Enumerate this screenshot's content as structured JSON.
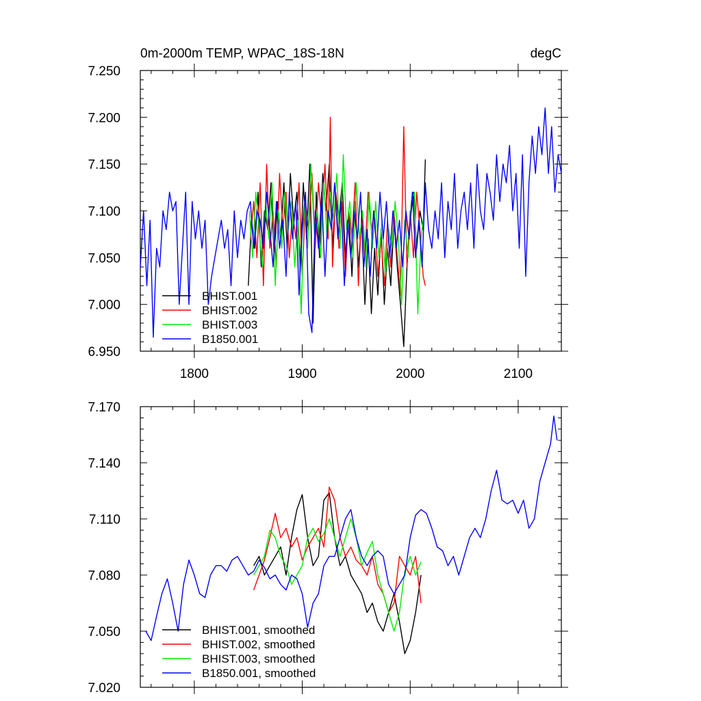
{
  "chart_data": [
    {
      "type": "line",
      "title": "0m-2000m TEMP, WPAC_18S-18N",
      "units": "degC",
      "xlim": [
        1750,
        2140
      ],
      "ylim": [
        6.95,
        7.25
      ],
      "x_ticks": [
        1800,
        1900,
        2000,
        2100
      ],
      "x_tick_labels": [
        "1800",
        "1900",
        "2000",
        "2100"
      ],
      "y_ticks": [
        6.95,
        7.0,
        7.05,
        7.1,
        7.15,
        7.2,
        7.25
      ],
      "y_tick_labels": [
        "6.950",
        "7.000",
        "7.050",
        "7.100",
        "7.150",
        "7.200",
        "7.250"
      ],
      "legend_position": "bottom-left",
      "grid": false,
      "series": [
        {
          "name": "BHIST.001",
          "color": "#000000",
          "x": [
            1850,
            1853,
            1856,
            1859,
            1862,
            1865,
            1868,
            1871,
            1874,
            1877,
            1880,
            1883,
            1886,
            1889,
            1892,
            1895,
            1898,
            1901,
            1904,
            1907,
            1910,
            1913,
            1916,
            1919,
            1922,
            1925,
            1928,
            1931,
            1934,
            1937,
            1940,
            1943,
            1946,
            1949,
            1952,
            1955,
            1958,
            1961,
            1964,
            1967,
            1970,
            1973,
            1976,
            1979,
            1982,
            1985,
            1988,
            1991,
            1994,
            1997,
            2000,
            2003,
            2006,
            2009,
            2012,
            2014
          ],
          "y": [
            7.02,
            7.09,
            7.06,
            7.12,
            7.04,
            7.1,
            7.08,
            7.13,
            7.05,
            7.11,
            7.07,
            7.13,
            7.06,
            7.14,
            7.09,
            7.12,
            7.04,
            7.13,
            7.07,
            7.15,
            6.98,
            7.12,
            7.05,
            7.14,
            7.1,
            7.15,
            7.06,
            7.12,
            7.09,
            7.13,
            7.05,
            7.1,
            7.03,
            7.11,
            7.04,
            7.09,
            7.0,
            7.07,
            6.99,
            7.06,
            7.01,
            7.08,
            7.0,
            7.06,
            7.02,
            7.09,
            7.04,
            7.0,
            6.955,
            7.04,
            7.09,
            7.12,
            7.06,
            7.1,
            7.08,
            7.155
          ]
        },
        {
          "name": "BHIST.002",
          "color": "#ff0000",
          "x": [
            1852,
            1855,
            1858,
            1861,
            1864,
            1867,
            1870,
            1873,
            1876,
            1879,
            1882,
            1885,
            1888,
            1891,
            1894,
            1897,
            1900,
            1903,
            1906,
            1909,
            1912,
            1915,
            1918,
            1921,
            1924,
            1926,
            1928,
            1931,
            1934,
            1937,
            1940,
            1943,
            1946,
            1949,
            1952,
            1955,
            1958,
            1961,
            1964,
            1967,
            1970,
            1973,
            1976,
            1979,
            1982,
            1985,
            1988,
            1991,
            1994,
            1997,
            2000,
            2003,
            2006,
            2009,
            2012,
            2014
          ],
          "y": [
            7.07,
            7.11,
            7.05,
            7.13,
            7.02,
            7.15,
            7.06,
            7.1,
            7.04,
            7.14,
            7.08,
            7.12,
            7.05,
            7.1,
            7.07,
            7.13,
            7.03,
            7.11,
            7.08,
            7.14,
            7.06,
            7.13,
            7.09,
            7.15,
            7.07,
            7.2,
            7.04,
            7.12,
            7.06,
            7.11,
            7.03,
            7.1,
            7.07,
            7.13,
            7.02,
            7.1,
            7.05,
            7.12,
            7.08,
            7.1,
            7.03,
            7.07,
            7.02,
            7.09,
            7.04,
            7.1,
            7.05,
            7.01,
            7.19,
            7.04,
            7.1,
            7.05,
            7.12,
            7.08,
            7.03,
            7.02
          ]
        },
        {
          "name": "BHIST.003",
          "color": "#00ee00",
          "x": [
            1851,
            1854,
            1857,
            1860,
            1863,
            1866,
            1869,
            1872,
            1875,
            1878,
            1881,
            1884,
            1887,
            1890,
            1893,
            1896,
            1899,
            1902,
            1905,
            1908,
            1911,
            1914,
            1917,
            1920,
            1923,
            1926,
            1929,
            1932,
            1935,
            1938,
            1941,
            1944,
            1947,
            1950,
            1953,
            1956,
            1959,
            1962,
            1965,
            1968,
            1971,
            1974,
            1977,
            1980,
            1983,
            1986,
            1989,
            1992,
            1995,
            1998,
            2001,
            2004,
            2007,
            2010,
            2013
          ],
          "y": [
            7.1,
            7.05,
            7.12,
            7.08,
            7.04,
            7.11,
            7.07,
            7.13,
            7.02,
            7.1,
            7.06,
            7.12,
            7.08,
            7.11,
            7.04,
            7.09,
            6.99,
            7.11,
            7.06,
            7.15,
            7.08,
            7.1,
            7.05,
            7.13,
            7.07,
            7.12,
            7.09,
            7.14,
            7.06,
            7.16,
            7.08,
            7.11,
            7.05,
            7.13,
            7.07,
            7.1,
            7.04,
            7.12,
            7.06,
            7.11,
            7.05,
            7.09,
            7.03,
            7.08,
            7.06,
            7.11,
            7.07,
            7.0,
            7.09,
            7.05,
            7.11,
            7.12,
            6.99,
            7.07,
            7.1
          ]
        },
        {
          "name": "B1850.001",
          "color": "#0000ff",
          "x": [
            1750,
            1753,
            1756,
            1759,
            1762,
            1765,
            1768,
            1771,
            1774,
            1777,
            1780,
            1783,
            1786,
            1789,
            1792,
            1795,
            1798,
            1801,
            1804,
            1807,
            1810,
            1813,
            1816,
            1819,
            1822,
            1825,
            1828,
            1831,
            1834,
            1837,
            1840,
            1843,
            1846,
            1849,
            1852,
            1855,
            1858,
            1861,
            1864,
            1867,
            1870,
            1873,
            1876,
            1879,
            1882,
            1885,
            1888,
            1891,
            1894,
            1897,
            1900,
            1903,
            1906,
            1909,
            1912,
            1915,
            1918,
            1921,
            1924,
            1927,
            1930,
            1933,
            1936,
            1939,
            1942,
            1945,
            1948,
            1951,
            1954,
            1957,
            1960,
            1963,
            1966,
            1969,
            1972,
            1975,
            1978,
            1981,
            1984,
            1987,
            1990,
            1993,
            1996,
            1999,
            2002,
            2005,
            2008,
            2011,
            2014,
            2017,
            2020,
            2023,
            2026,
            2029,
            2032,
            2035,
            2038,
            2041,
            2044,
            2047,
            2050,
            2053,
            2056,
            2059,
            2062,
            2065,
            2068,
            2071,
            2074,
            2077,
            2080,
            2083,
            2086,
            2089,
            2092,
            2095,
            2098,
            2101,
            2104,
            2107,
            2110,
            2113,
            2116,
            2119,
            2122,
            2125,
            2128,
            2131,
            2134,
            2137,
            2140
          ],
          "y": [
            7.04,
            7.1,
            7.02,
            7.09,
            6.965,
            7.06,
            7.04,
            7.1,
            7.08,
            7.12,
            7.1,
            7.11,
            7.0,
            7.06,
            7.12,
            7.0,
            7.11,
            7.07,
            7.1,
            7.06,
            7.09,
            7.0,
            7.03,
            7.05,
            7.07,
            7.09,
            7.06,
            7.08,
            7.02,
            7.1,
            7.05,
            7.09,
            7.07,
            7.1,
            7.11,
            7.06,
            7.1,
            7.09,
            7.06,
            7.12,
            7.08,
            7.04,
            7.11,
            7.06,
            7.09,
            7.03,
            7.12,
            7.07,
            7.11,
            7.01,
            7.08,
            7.12,
            6.99,
            6.97,
            7.1,
            7.06,
            7.12,
            7.03,
            7.1,
            7.08,
            7.13,
            7.07,
            7.11,
            7.02,
            7.09,
            7.05,
            7.1,
            7.07,
            7.12,
            7.04,
            7.08,
            7.03,
            7.1,
            7.06,
            7.12,
            7.07,
            7.11,
            7.05,
            7.1,
            7.06,
            7.09,
            7.04,
            7.1,
            7.07,
            7.12,
            7.05,
            7.09,
            7.04,
            7.13,
            7.08,
            7.06,
            7.1,
            7.07,
            7.13,
            7.05,
            7.11,
            7.08,
            7.14,
            7.06,
            7.1,
            7.12,
            7.08,
            7.13,
            7.06,
            7.15,
            7.1,
            7.08,
            7.14,
            7.12,
            7.09,
            7.16,
            7.11,
            7.15,
            7.13,
            7.17,
            7.1,
            7.14,
            7.06,
            7.16,
            7.03,
            7.13,
            7.18,
            7.14,
            7.19,
            7.16,
            7.21,
            7.14,
            7.19,
            7.12,
            7.16,
            7.14
          ]
        }
      ]
    },
    {
      "type": "line",
      "xlim": [
        1750,
        2140
      ],
      "ylim": [
        7.02,
        7.17
      ],
      "x_ticks": [
        1800,
        1900,
        2000,
        2100
      ],
      "y_ticks": [
        7.02,
        7.05,
        7.08,
        7.11,
        7.14,
        7.17
      ],
      "y_tick_labels": [
        "7.020",
        "7.050",
        "7.080",
        "7.110",
        "7.140",
        "7.170"
      ],
      "legend_position": "bottom-left",
      "grid": false,
      "series": [
        {
          "name": "BHIST.001, smoothed",
          "color": "#000000",
          "x": [
            1855,
            1860,
            1865,
            1870,
            1875,
            1880,
            1885,
            1890,
            1895,
            1900,
            1905,
            1910,
            1915,
            1920,
            1925,
            1930,
            1935,
            1940,
            1945,
            1950,
            1955,
            1960,
            1965,
            1970,
            1975,
            1980,
            1985,
            1990,
            1995,
            2000,
            2005,
            2010
          ],
          "y": [
            7.085,
            7.09,
            7.08,
            7.085,
            7.09,
            7.095,
            7.08,
            7.1,
            7.115,
            7.123,
            7.1,
            7.085,
            7.09,
            7.12,
            7.124,
            7.1,
            7.085,
            7.09,
            7.08,
            7.075,
            7.07,
            7.06,
            7.065,
            7.055,
            7.05,
            7.06,
            7.07,
            7.055,
            7.038,
            7.045,
            7.06,
            7.08
          ]
        },
        {
          "name": "BHIST.002, smoothed",
          "color": "#ff0000",
          "x": [
            1855,
            1860,
            1865,
            1870,
            1875,
            1880,
            1885,
            1890,
            1895,
            1900,
            1905,
            1910,
            1915,
            1920,
            1925,
            1930,
            1935,
            1940,
            1945,
            1950,
            1955,
            1960,
            1965,
            1970,
            1975,
            1980,
            1985,
            1990,
            1995,
            2000,
            2005,
            2010
          ],
          "y": [
            7.072,
            7.08,
            7.088,
            7.1,
            7.113,
            7.1,
            7.105,
            7.095,
            7.1,
            7.088,
            7.095,
            7.1,
            7.105,
            7.095,
            7.127,
            7.12,
            7.1,
            7.09,
            7.095,
            7.088,
            7.085,
            7.08,
            7.09,
            7.075,
            7.07,
            7.06,
            7.065,
            7.09,
            7.085,
            7.08,
            7.09,
            7.065
          ]
        },
        {
          "name": "BHIST.003, smoothed",
          "color": "#00ee00",
          "x": [
            1855,
            1860,
            1865,
            1870,
            1875,
            1880,
            1885,
            1890,
            1895,
            1900,
            1905,
            1910,
            1915,
            1920,
            1925,
            1930,
            1935,
            1940,
            1945,
            1950,
            1955,
            1960,
            1965,
            1970,
            1975,
            1980,
            1985,
            1990,
            1995,
            2000,
            2005,
            2010
          ],
          "y": [
            7.08,
            7.085,
            7.09,
            7.104,
            7.1,
            7.09,
            7.085,
            7.075,
            7.08,
            7.085,
            7.1,
            7.105,
            7.098,
            7.102,
            7.11,
            7.1,
            7.09,
            7.1,
            7.11,
            7.1,
            7.085,
            7.092,
            7.098,
            7.08,
            7.07,
            7.06,
            7.05,
            7.06,
            7.082,
            7.09,
            7.08,
            7.087
          ]
        },
        {
          "name": "B1850.001, smoothed",
          "color": "#0000ff",
          "x": [
            1755,
            1760,
            1765,
            1770,
            1775,
            1780,
            1785,
            1790,
            1795,
            1800,
            1805,
            1810,
            1815,
            1820,
            1825,
            1830,
            1835,
            1840,
            1845,
            1850,
            1855,
            1860,
            1865,
            1870,
            1875,
            1880,
            1885,
            1890,
            1895,
            1900,
            1905,
            1910,
            1915,
            1920,
            1925,
            1930,
            1935,
            1940,
            1945,
            1950,
            1955,
            1960,
            1965,
            1970,
            1975,
            1980,
            1985,
            1990,
            1995,
            2000,
            2005,
            2010,
            2015,
            2020,
            2025,
            2030,
            2035,
            2040,
            2045,
            2050,
            2055,
            2060,
            2065,
            2070,
            2075,
            2080,
            2085,
            2090,
            2095,
            2100,
            2105,
            2110,
            2115,
            2120,
            2125,
            2130,
            2133,
            2136
          ],
          "y": [
            7.05,
            7.045,
            7.058,
            7.07,
            7.078,
            7.065,
            7.05,
            7.075,
            7.088,
            7.08,
            7.07,
            7.068,
            7.08,
            7.085,
            7.085,
            7.082,
            7.088,
            7.09,
            7.085,
            7.08,
            7.082,
            7.088,
            7.084,
            7.078,
            7.08,
            7.075,
            7.072,
            7.08,
            7.078,
            7.07,
            7.052,
            7.065,
            7.07,
            7.085,
            7.09,
            7.09,
            7.1,
            7.11,
            7.115,
            7.1,
            7.09,
            7.085,
            7.09,
            7.093,
            7.09,
            7.075,
            7.07,
            7.075,
            7.08,
            7.1,
            7.112,
            7.115,
            7.113,
            7.105,
            7.095,
            7.093,
            7.085,
            7.09,
            7.08,
            7.09,
            7.1,
            7.105,
            7.1,
            7.11,
            7.125,
            7.136,
            7.12,
            7.118,
            7.12,
            7.113,
            7.12,
            7.105,
            7.11,
            7.13,
            7.14,
            7.15,
            7.165,
            7.152
          ]
        }
      ]
    }
  ]
}
